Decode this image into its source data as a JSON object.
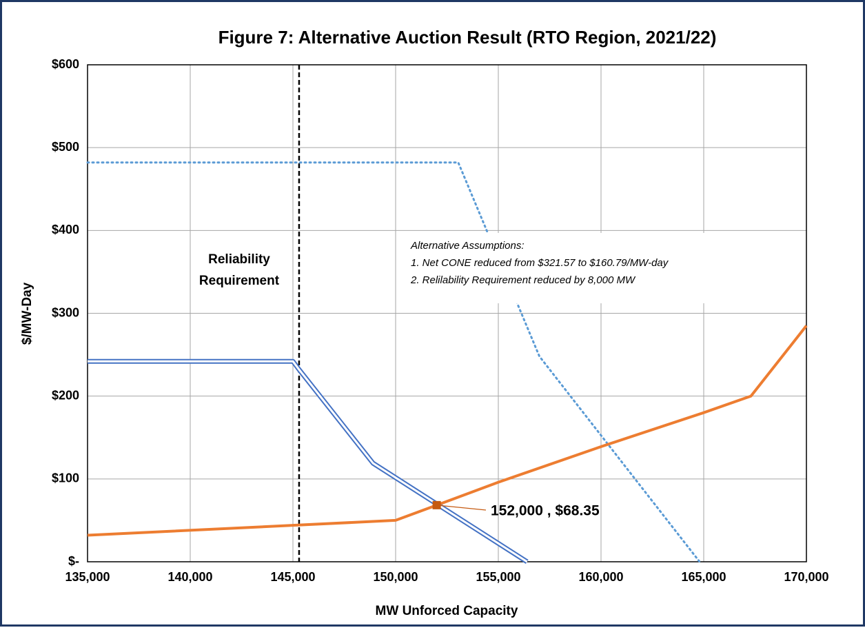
{
  "chart_data": {
    "type": "line",
    "title": "Figure 7:  Alternative Auction Result (RTO Region, 2021/22)",
    "x_label": "MW Unforced Capacity",
    "y_label": "$/MW-Day",
    "xlim": [
      135000,
      170000
    ],
    "ylim": [
      0,
      600
    ],
    "xticks": [
      {
        "value": 135000,
        "label": "135,000"
      },
      {
        "value": 140000,
        "label": "140,000"
      },
      {
        "value": 145000,
        "label": "145,000"
      },
      {
        "value": 150000,
        "label": "150,000"
      },
      {
        "value": 155000,
        "label": "155,000"
      },
      {
        "value": 160000,
        "label": "160,000"
      },
      {
        "value": 165000,
        "label": "165,000"
      },
      {
        "value": 170000,
        "label": "170,000"
      }
    ],
    "yticks": [
      {
        "value": 0,
        "label": "$-"
      },
      {
        "value": 100,
        "label": "$100"
      },
      {
        "value": 200,
        "label": "$200"
      },
      {
        "value": 300,
        "label": "$300"
      },
      {
        "value": 400,
        "label": "$400"
      },
      {
        "value": 500,
        "label": "$500"
      },
      {
        "value": 600,
        "label": "$600"
      }
    ],
    "grid": true,
    "series": [
      {
        "color": "#5b9bd5",
        "style": "dotted",
        "x": [
          135000,
          153050,
          157000,
          164800
        ],
        "values": [
          482,
          482,
          248,
          0
        ]
      },
      {
        "color": "#4472c4",
        "style": "double",
        "x": [
          135000,
          145000,
          145300,
          148900,
          156400
        ],
        "values": [
          242,
          242,
          232,
          119,
          0
        ]
      },
      {
        "color": "#ed7d31",
        "style": "solid",
        "x": [
          135000,
          145000,
          150000,
          152000,
          155000,
          160000,
          165000,
          167300,
          170000
        ],
        "values": [
          32,
          44,
          50,
          68.35,
          96,
          139,
          180,
          200,
          285
        ]
      }
    ],
    "reference_line": {
      "x": 145300,
      "label_lines": [
        "Reliability",
        "Requirement"
      ]
    },
    "point": {
      "x": 152000,
      "y": 68.35,
      "color": "#c55a11",
      "label": "152,000 , $68.35",
      "label_color": "#c00000"
    },
    "note_lines": [
      "Alternative  Assumptions:",
      "1. Net CONE reduced from $321.57 to $160.79/MW-day",
      "2. Relilability Requirement reduced by 8,000 MW"
    ]
  }
}
